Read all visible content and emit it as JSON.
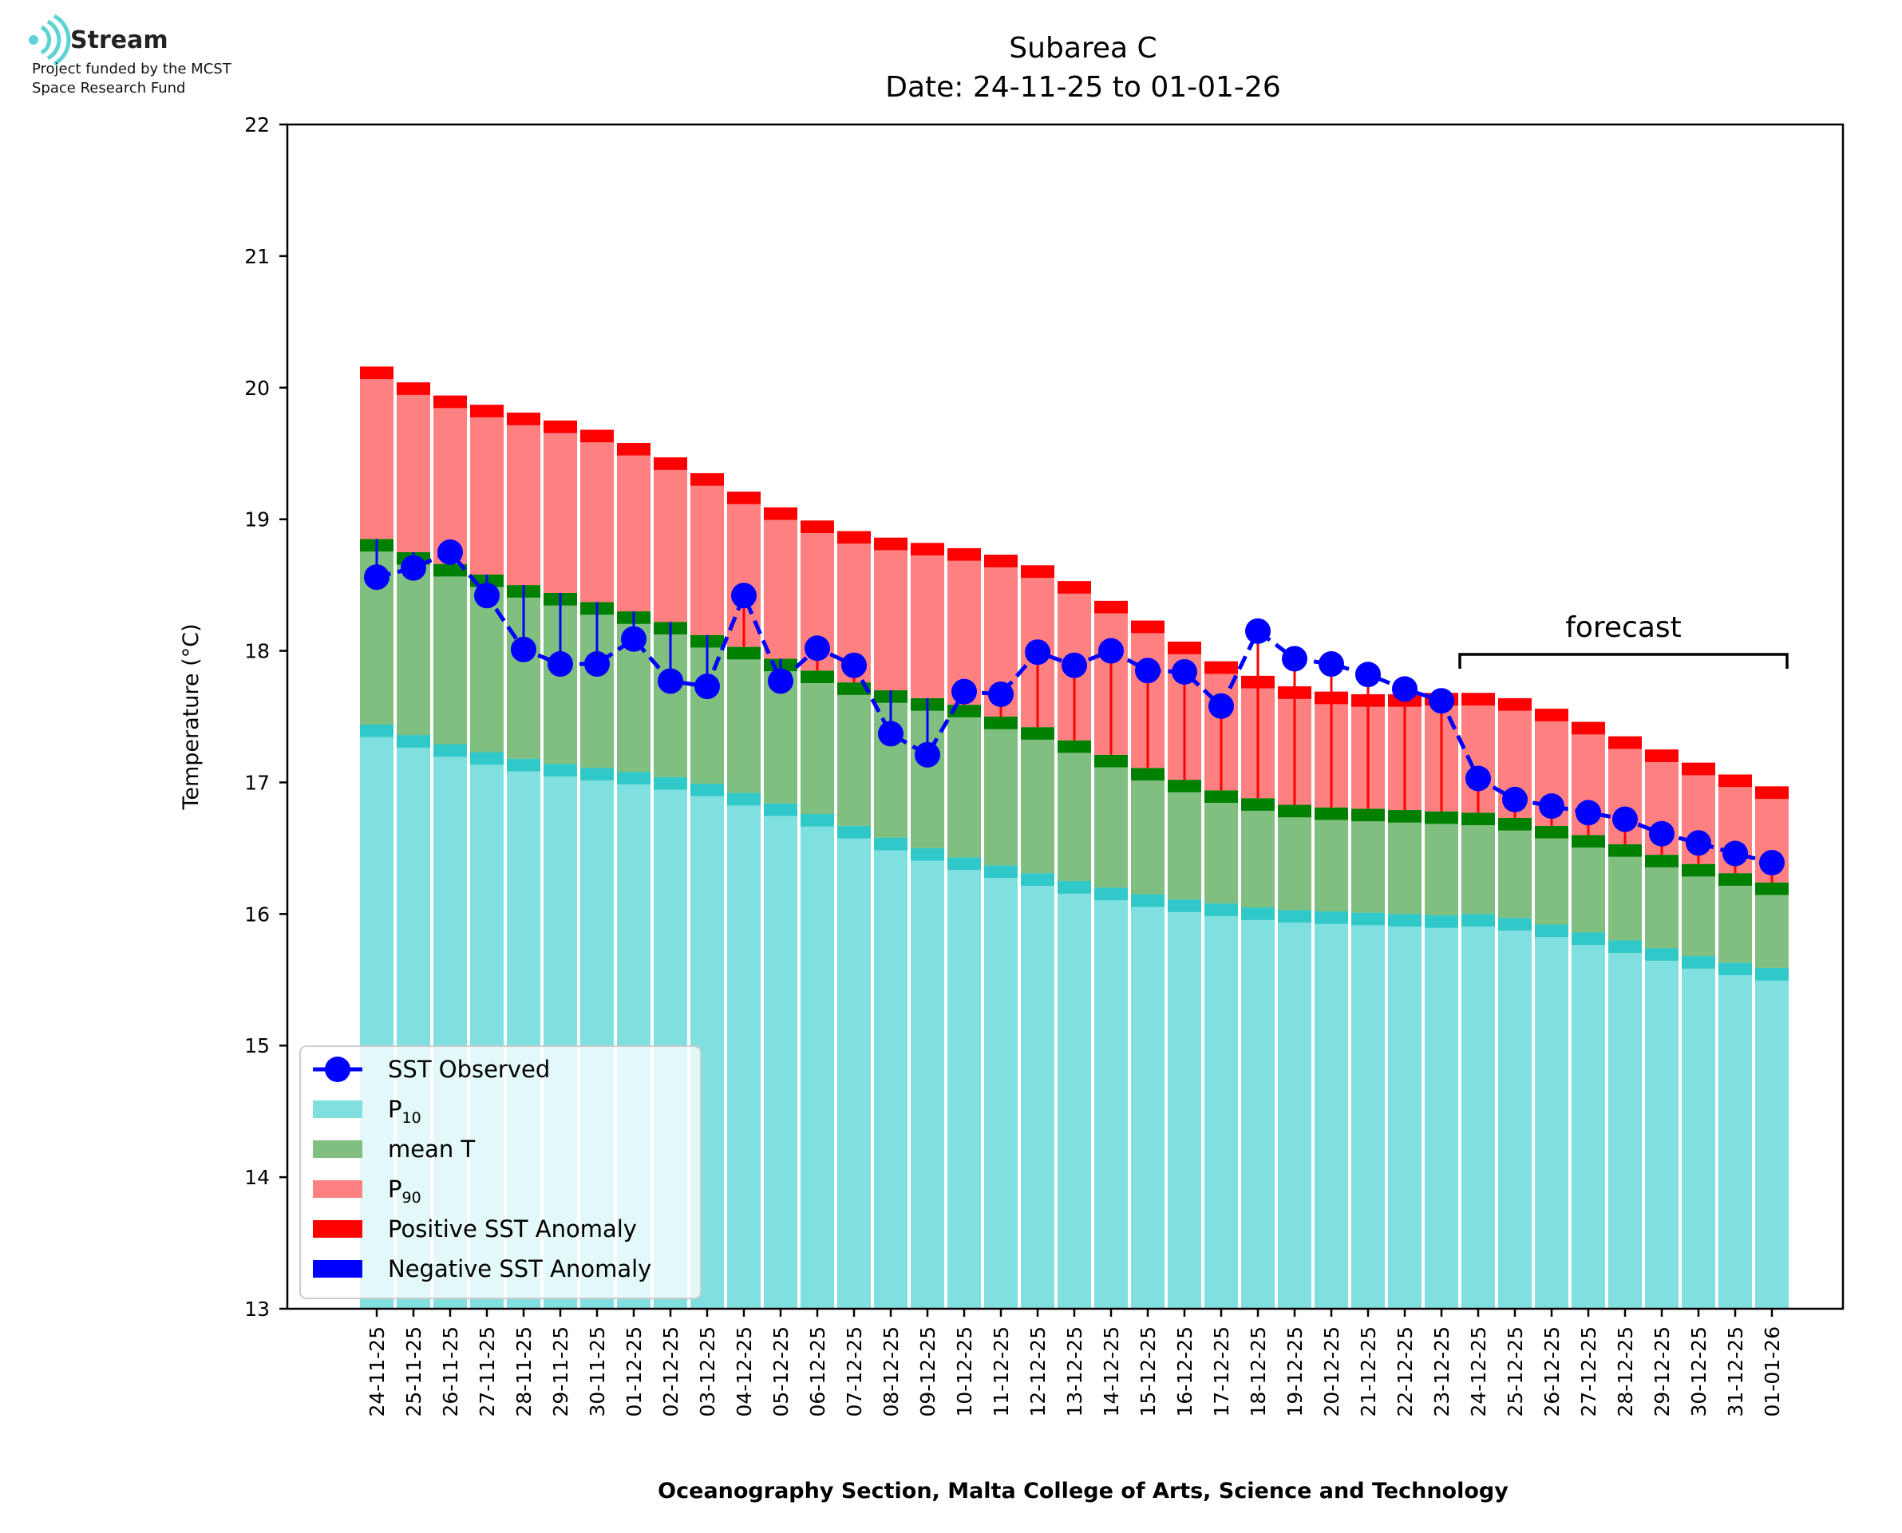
{
  "logo": {
    "name": "Stream",
    "funding_line1": "Project funded by the MCST",
    "funding_line2": "Space Research Fund",
    "icon": "stream-waves-icon"
  },
  "chart_data": {
    "type": "bar",
    "title": "Subarea C",
    "subtitle": "Date: 24-11-25 to 01-01-26",
    "xlabel": "Oceanography Section, Malta College of Arts, Science and Technology",
    "ylabel": "Temperature (°C)",
    "ylim": [
      13,
      22
    ],
    "yticks": [
      "13",
      "14",
      "15",
      "16",
      "17",
      "18",
      "19",
      "20",
      "21",
      "22"
    ],
    "grid": false,
    "legend_position": "lower-left",
    "categories": [
      "24-11-25",
      "25-11-25",
      "26-11-25",
      "27-11-25",
      "28-11-25",
      "29-11-25",
      "30-11-25",
      "01-12-25",
      "02-12-25",
      "03-12-25",
      "04-12-25",
      "05-12-25",
      "06-12-25",
      "07-12-25",
      "08-12-25",
      "09-12-25",
      "10-12-25",
      "11-12-25",
      "12-12-25",
      "13-12-25",
      "14-12-25",
      "15-12-25",
      "16-12-25",
      "17-12-25",
      "18-12-25",
      "19-12-25",
      "20-12-25",
      "21-12-25",
      "22-12-25",
      "23-12-25",
      "24-12-25",
      "25-12-25",
      "26-12-25",
      "27-12-25",
      "28-12-25",
      "29-12-25",
      "30-12-25",
      "31-12-25",
      "01-01-26"
    ],
    "series": [
      {
        "name": "P10",
        "color": "#80dfdf",
        "values": [
          17.44,
          17.36,
          17.29,
          17.23,
          17.18,
          17.14,
          17.11,
          17.08,
          17.04,
          16.99,
          16.92,
          16.84,
          16.76,
          16.67,
          16.58,
          16.5,
          16.43,
          16.37,
          16.31,
          16.25,
          16.2,
          16.15,
          16.11,
          16.08,
          16.05,
          16.03,
          16.02,
          16.01,
          16.0,
          15.99,
          16.0,
          15.97,
          15.92,
          15.86,
          15.8,
          15.74,
          15.68,
          15.63,
          15.59
        ]
      },
      {
        "name": "mean T",
        "color": "#80bf80",
        "values": [
          18.85,
          18.75,
          18.66,
          18.58,
          18.5,
          18.44,
          18.37,
          18.3,
          18.22,
          18.12,
          18.03,
          17.94,
          17.85,
          17.76,
          17.7,
          17.64,
          17.59,
          17.5,
          17.42,
          17.32,
          17.21,
          17.11,
          17.02,
          16.94,
          16.88,
          16.83,
          16.81,
          16.8,
          16.79,
          16.78,
          16.77,
          16.73,
          16.67,
          16.6,
          16.53,
          16.45,
          16.38,
          16.31,
          16.24
        ]
      },
      {
        "name": "P90",
        "color": "#ff8080",
        "values": [
          20.16,
          20.04,
          19.94,
          19.87,
          19.81,
          19.75,
          19.68,
          19.58,
          19.47,
          19.35,
          19.21,
          19.09,
          18.99,
          18.91,
          18.86,
          18.82,
          18.78,
          18.73,
          18.65,
          18.53,
          18.38,
          18.23,
          18.07,
          17.92,
          17.81,
          17.73,
          17.69,
          17.67,
          17.67,
          17.68,
          17.68,
          17.64,
          17.56,
          17.46,
          17.35,
          17.25,
          17.15,
          17.06,
          16.97
        ]
      },
      {
        "name": "SST Observed",
        "color": "#0000ff",
        "values": [
          18.56,
          18.63,
          18.75,
          18.42,
          18.01,
          17.9,
          17.9,
          18.09,
          17.77,
          17.73,
          18.42,
          17.77,
          18.02,
          17.89,
          17.37,
          17.21,
          17.69,
          17.67,
          17.99,
          17.89,
          18.0,
          17.85,
          17.84,
          17.58,
          18.15,
          17.94,
          17.9,
          17.82,
          17.71,
          17.62,
          17.03,
          16.87,
          16.82,
          16.77,
          16.72,
          16.61,
          16.54,
          16.46,
          16.39
        ]
      }
    ],
    "forecast_start_index": 30,
    "forecast_label": "forecast",
    "legend": [
      {
        "label": "SST Observed",
        "kind": "line-marker",
        "color": "#0000ff"
      },
      {
        "label": "P",
        "sub": "10",
        "kind": "patch",
        "color": "#80dfdf"
      },
      {
        "label": "mean T",
        "kind": "patch",
        "color": "#80bf80"
      },
      {
        "label": "P",
        "sub": "90",
        "kind": "patch",
        "color": "#ff8080"
      },
      {
        "label": "Positive SST Anomaly",
        "kind": "patch",
        "color": "#ff0000"
      },
      {
        "label": "Negative SST Anomaly",
        "kind": "patch",
        "color": "#0000ff"
      }
    ]
  },
  "colors": {
    "p10": "#80dfdf",
    "p10_band": "#30c8c8",
    "mean": "#80bf80",
    "mean_band": "#008000",
    "p90": "#ff8080",
    "p90_band": "#ff0000",
    "sst": "#0000ff",
    "positive_anomaly": "#ff0000",
    "negative_anomaly": "#0000ff"
  }
}
